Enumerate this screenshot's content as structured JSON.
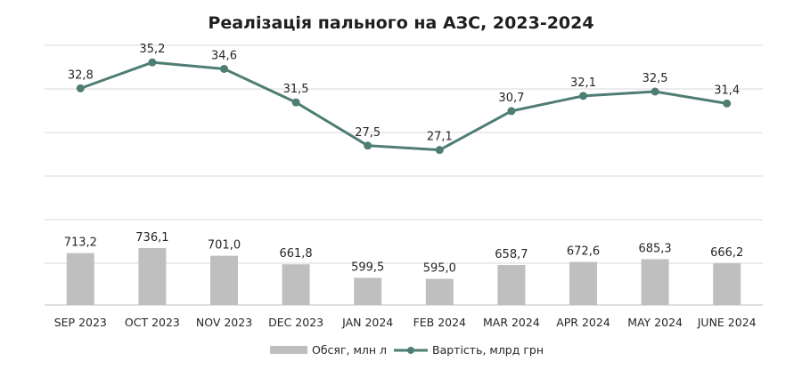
{
  "chart_data": {
    "type": "bar+line",
    "title": "Реалізація пального на АЗС, 2023-2024",
    "categories": [
      "SEP 2023",
      "OCT 2023",
      "NOV 2023",
      "DEC 2023",
      "JAN 2024",
      "FEB 2024",
      "MAR 2024",
      "APR 2024",
      "MAY 2024",
      "JUNE 2024"
    ],
    "series": [
      {
        "name": "Обсяг, млн л",
        "type": "bar",
        "color": "#bfbfbf",
        "values": [
          713.2,
          736.1,
          701.0,
          661.8,
          599.5,
          595.0,
          658.7,
          672.6,
          685.3,
          666.2
        ],
        "labels": [
          "713,2",
          "736,1",
          "701,0",
          "661,8",
          "599,5",
          "595,0",
          "658,7",
          "672,6",
          "685,3",
          "666,2"
        ]
      },
      {
        "name": "Вартість, млрд грн",
        "type": "line",
        "color": "#4e7d73",
        "values": [
          32.8,
          35.2,
          34.6,
          31.5,
          27.5,
          27.1,
          30.7,
          32.1,
          32.5,
          31.4
        ],
        "labels": [
          "32,8",
          "35,2",
          "34,6",
          "31,5",
          "27,5",
          "27,1",
          "30,7",
          "32,1",
          "32,5",
          "31,4"
        ]
      }
    ],
    "grid": true,
    "legend": "bottom"
  }
}
